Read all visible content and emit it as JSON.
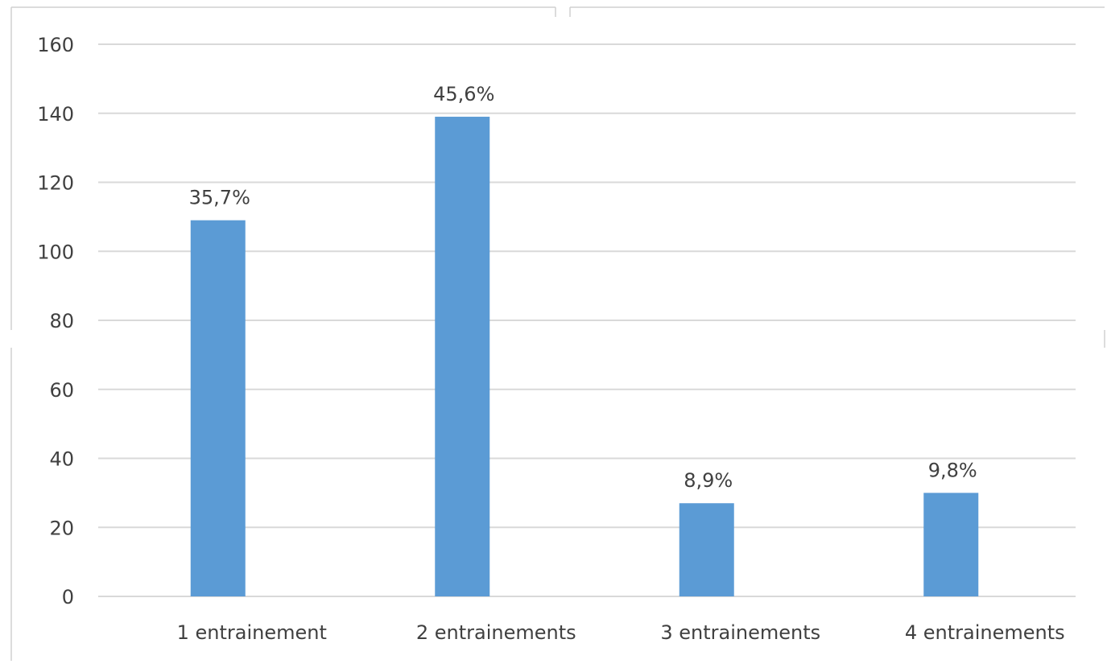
{
  "chart_data": {
    "type": "bar",
    "categories": [
      "1 entrainement",
      "2 entrainements",
      "3 entrainements",
      "4 entrainements"
    ],
    "values": [
      109,
      139,
      27,
      30
    ],
    "data_labels": [
      "35,7%",
      "45,6%",
      "8,9%",
      "9,8%"
    ],
    "ylim": [
      0,
      160
    ],
    "yticks": [
      0,
      20,
      40,
      60,
      80,
      100,
      120,
      140,
      160
    ],
    "grid": true,
    "legend": "none",
    "title": "",
    "xlabel": "",
    "ylabel": ""
  },
  "colors": {
    "bar": "#5b9bd5",
    "grid": "#d9d9d9",
    "text": "#404040",
    "frame": "#d0d0d0"
  }
}
